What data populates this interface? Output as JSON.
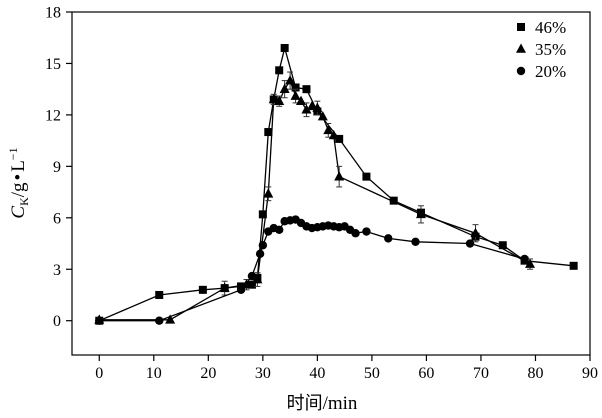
{
  "chart_data": {
    "type": "line",
    "x_label": {
      "main": "时间",
      "unit": "/min"
    },
    "y_label": {
      "var": "C",
      "sub": "K",
      "unit_a": "/g",
      "dot": "•",
      "unit_b": "L",
      "sup": "−1"
    },
    "xlim": [
      -5,
      90
    ],
    "ylim": [
      -2,
      18
    ],
    "x_ticks": [
      0,
      10,
      20,
      30,
      40,
      50,
      60,
      70,
      80,
      90
    ],
    "y_ticks": [
      0,
      3,
      6,
      9,
      12,
      15,
      18
    ],
    "legend_position": "top-right",
    "series": [
      {
        "name": "46%",
        "marker": "square",
        "points": [
          [
            0,
            0
          ],
          [
            11,
            1.5
          ],
          [
            19,
            1.8
          ],
          [
            23,
            1.9
          ],
          [
            26,
            2
          ],
          [
            28,
            2.1
          ],
          [
            29,
            2.5
          ],
          [
            30,
            6.2
          ],
          [
            31,
            11
          ],
          [
            32,
            12.9
          ],
          [
            33,
            14.6
          ],
          [
            34,
            15.9
          ],
          [
            36,
            13.6
          ],
          [
            38,
            13.5
          ],
          [
            40,
            12.2
          ],
          [
            44,
            10.6
          ],
          [
            49,
            8.4
          ],
          [
            54,
            7
          ],
          [
            59,
            6.3
          ],
          [
            69,
            4.9
          ],
          [
            74,
            4.4
          ],
          [
            78,
            3.5
          ],
          [
            87,
            3.2
          ]
        ]
      },
      {
        "name": "35%",
        "marker": "triangle",
        "points": [
          [
            0,
            0.05
          ],
          [
            13,
            0.05
          ],
          [
            23,
            1.9
          ],
          [
            27,
            2.1
          ],
          [
            29,
            2.4
          ],
          [
            31,
            7.4
          ],
          [
            32,
            12.9
          ],
          [
            33,
            12.8
          ],
          [
            34,
            13.5
          ],
          [
            35,
            14
          ],
          [
            36,
            13.1
          ],
          [
            37,
            12.8
          ],
          [
            38,
            12.3
          ],
          [
            39,
            12.5
          ],
          [
            40,
            12.4
          ],
          [
            41,
            11.9
          ],
          [
            42,
            11.1
          ],
          [
            43,
            10.8
          ],
          [
            44,
            8.4
          ],
          [
            59,
            6.2
          ],
          [
            69,
            5.1
          ],
          [
            79,
            3.3
          ]
        ],
        "error_bars": [
          [
            23,
            0.4
          ],
          [
            27,
            0.3
          ],
          [
            29,
            0.4
          ],
          [
            31,
            0.4
          ],
          [
            32,
            0.3
          ],
          [
            33,
            0.3
          ],
          [
            34,
            0.5
          ],
          [
            35,
            0.5
          ],
          [
            36,
            0.4
          ],
          [
            38,
            0.4
          ],
          [
            40,
            0.4
          ],
          [
            42,
            0.4
          ],
          [
            44,
            0.6
          ],
          [
            59,
            0.5
          ],
          [
            69,
            0.5
          ],
          [
            79,
            0.3
          ]
        ]
      },
      {
        "name": "20%",
        "marker": "circle",
        "points": [
          [
            0,
            0
          ],
          [
            11,
            0
          ],
          [
            26,
            1.8
          ],
          [
            28,
            2.6
          ],
          [
            29.5,
            3.9
          ],
          [
            30,
            4.4
          ],
          [
            31,
            5.2
          ],
          [
            32,
            5.4
          ],
          [
            33,
            5.3
          ],
          [
            34,
            5.8
          ],
          [
            35,
            5.85
          ],
          [
            36,
            5.9
          ],
          [
            37,
            5.7
          ],
          [
            38,
            5.5
          ],
          [
            39,
            5.4
          ],
          [
            40,
            5.45
          ],
          [
            41,
            5.5
          ],
          [
            42,
            5.55
          ],
          [
            43,
            5.5
          ],
          [
            44,
            5.45
          ],
          [
            45,
            5.5
          ],
          [
            46,
            5.3
          ],
          [
            47,
            5.1
          ],
          [
            49,
            5.2
          ],
          [
            53,
            4.8
          ],
          [
            58,
            4.6
          ],
          [
            68,
            4.5
          ],
          [
            78,
            3.6
          ]
        ]
      }
    ]
  }
}
